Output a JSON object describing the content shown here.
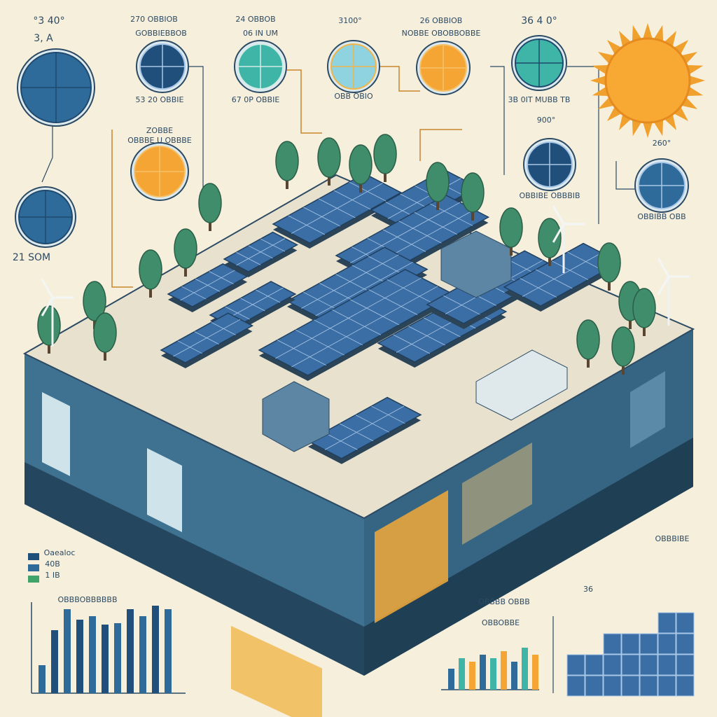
{
  "labels": {
    "a": "°3 40°",
    "b": "3, A",
    "c": "270 OBBIOB",
    "d": "GOBBIEBBOB",
    "e": "24 OBBOB",
    "f": "06 IN UM",
    "g": "3100°",
    "h": "26 OBBIOB",
    "i": "NOBBE OBOBBOBBE",
    "j": "36 4 0°",
    "k": "53 20 OBBIE",
    "l": "67 0P OBBIE",
    "m": "OBB OBIO",
    "n": "3B 0IT MUBB TB",
    "o": "900°",
    "p": "260°",
    "q": "ZOBBE",
    "r": "OBBBE U OBBBE",
    "s": "21 SOM",
    "t": "OBBIBE OBBBIB",
    "u": "OBBIBB OBB",
    "v": "OBBBIBE",
    "w": "Oaealoc",
    "x": "40B",
    "y": "1 IB",
    "z": "OBBBOBBBBBB",
    "aa": "36",
    "ab": "OBBBB OBBB",
    "ac": "OBBOBBE"
  }
}
